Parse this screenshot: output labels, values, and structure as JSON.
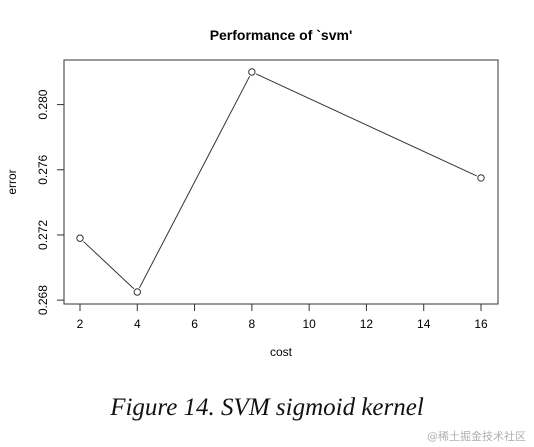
{
  "chart_data": {
    "type": "line",
    "title": "Performance of `svm'",
    "xlabel": "cost",
    "ylabel": "error",
    "x": [
      2,
      4,
      8,
      16
    ],
    "y": [
      0.2718,
      0.2685,
      0.282,
      0.2755
    ],
    "xlim": [
      2,
      16
    ],
    "ylim": [
      0.2685,
      0.282
    ],
    "xticks": [
      2,
      4,
      6,
      8,
      10,
      12,
      14,
      16
    ],
    "yticks": [
      0.268,
      0.272,
      0.276,
      0.28
    ],
    "ytick_labels": [
      "0.268",
      "0.272",
      "0.276",
      "0.280"
    ],
    "grid": false,
    "marker": "open-circle",
    "line_color": "#333333"
  },
  "caption": "Figure 14. SVM sigmoid kernel",
  "watermark": "@稀土掘金技术社区"
}
